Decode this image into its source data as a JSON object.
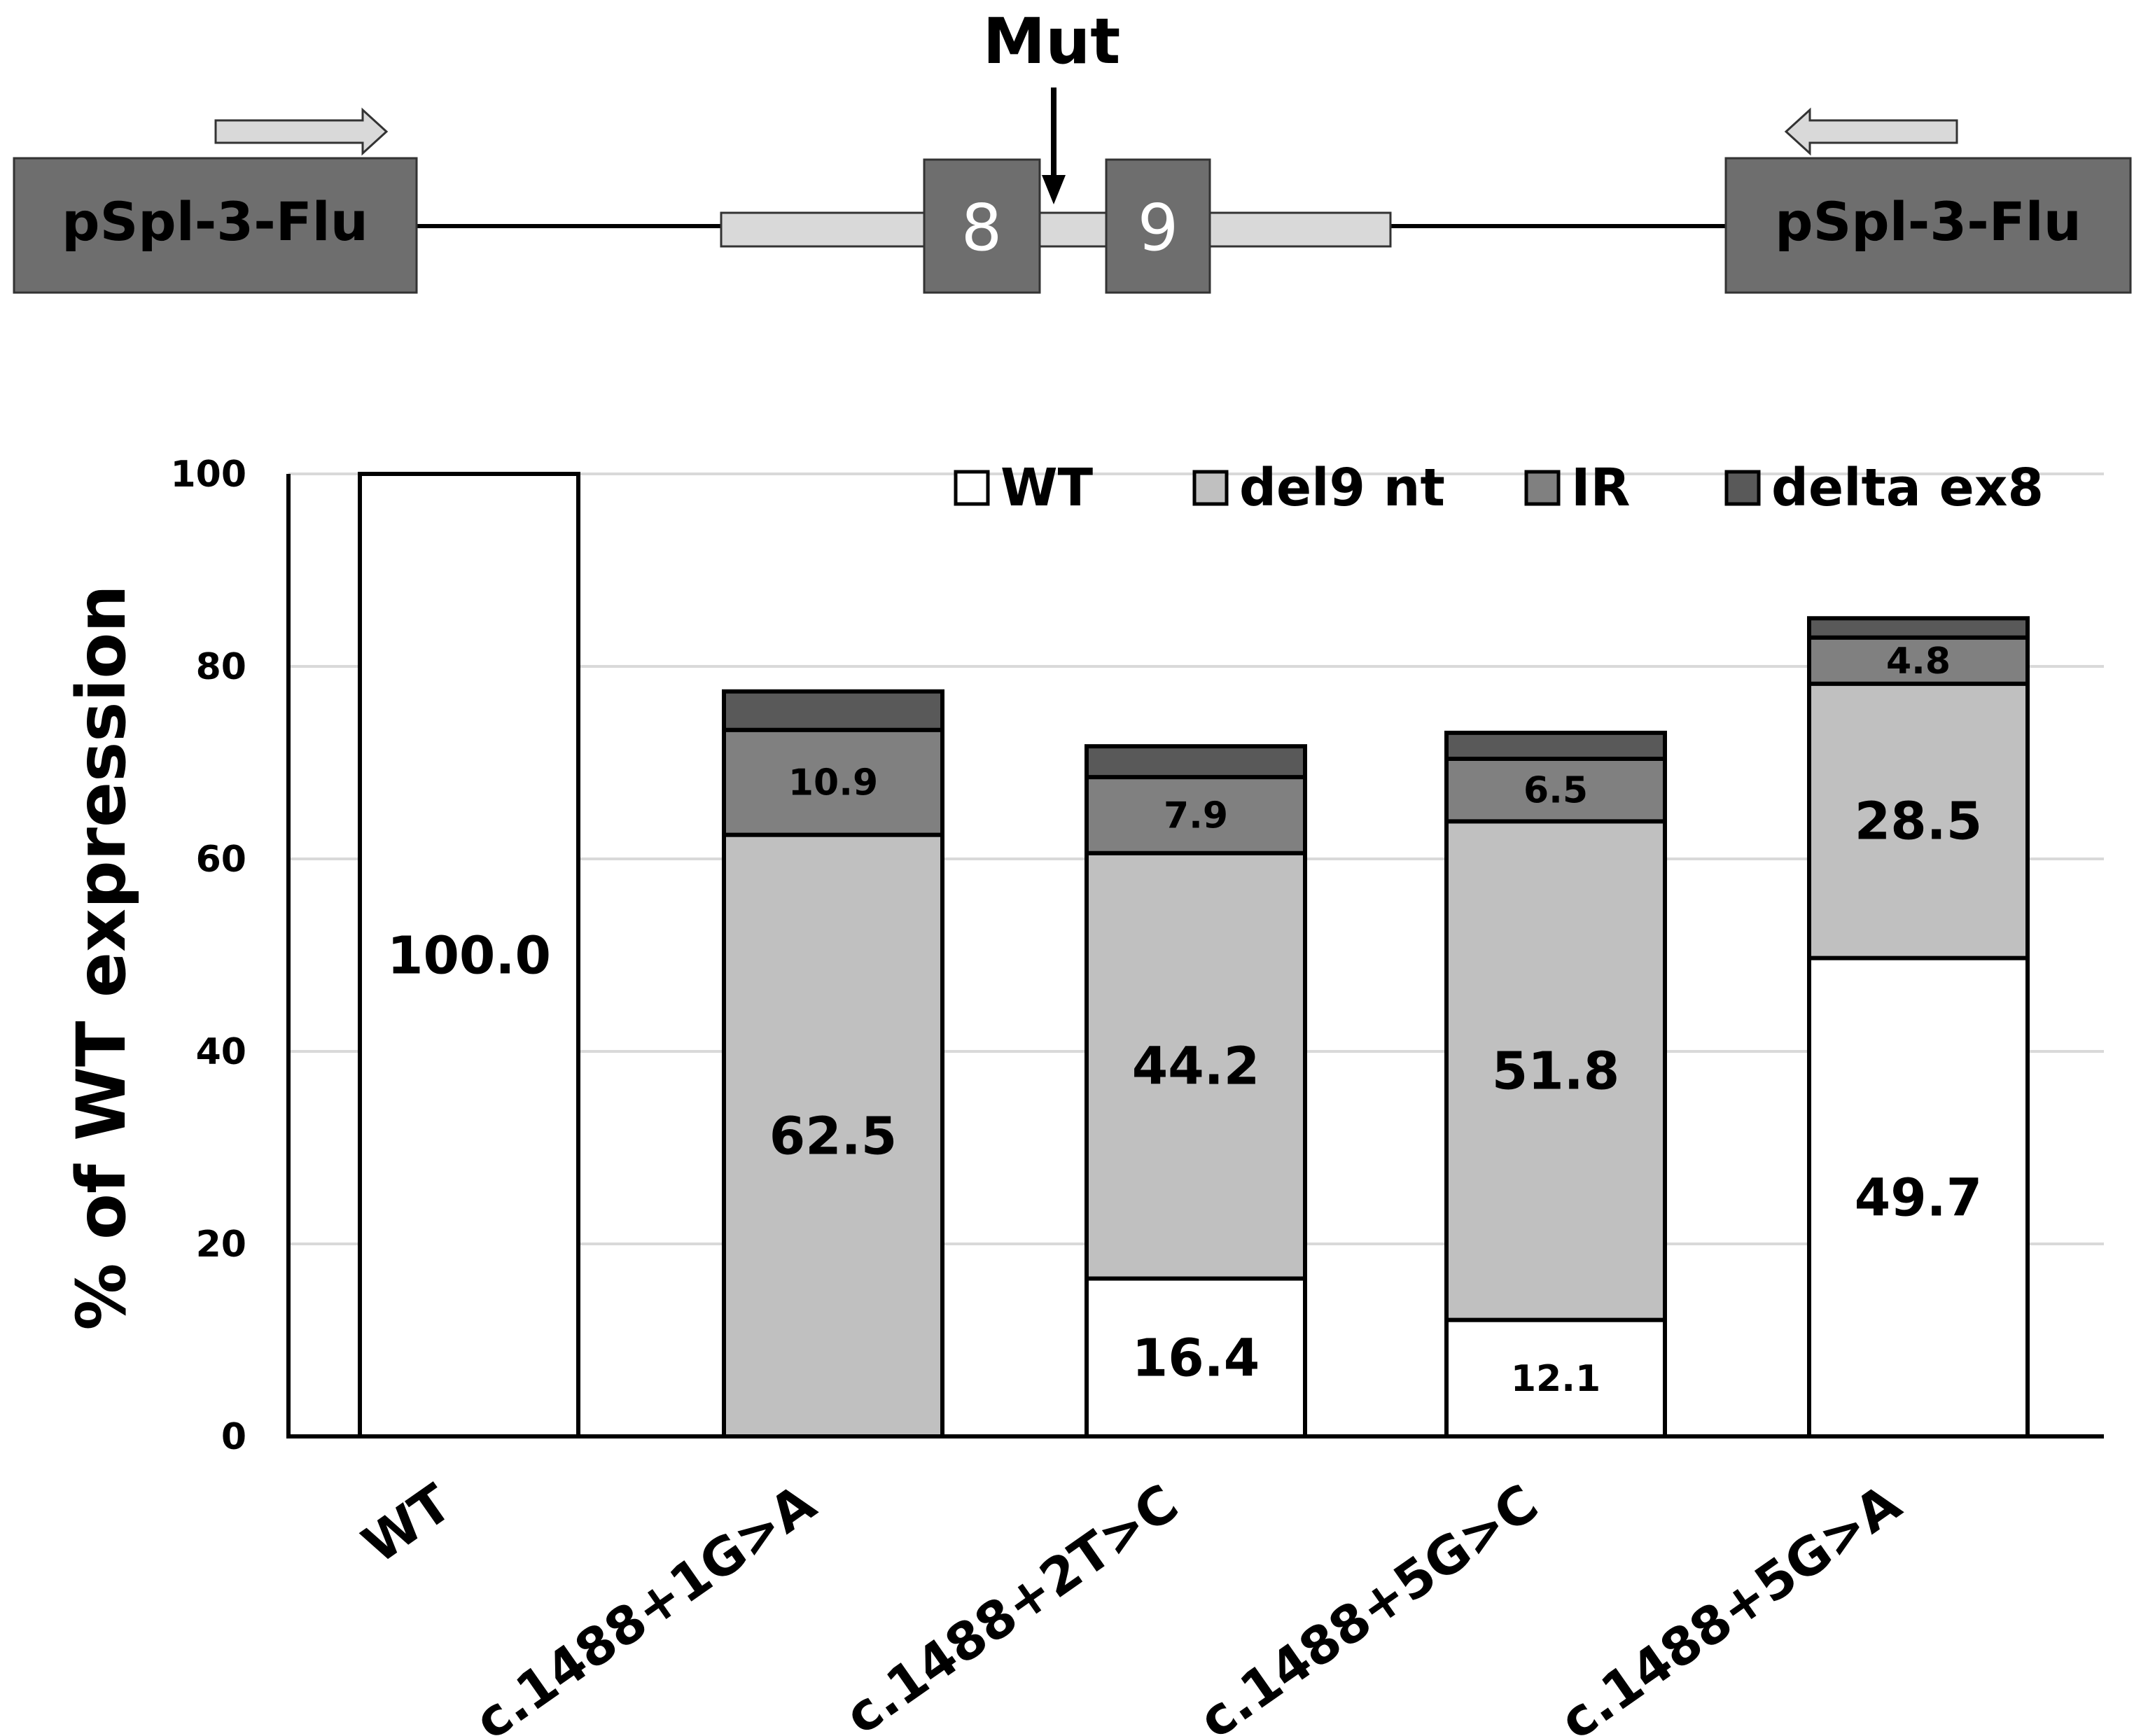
{
  "diagram": {
    "mutation_label": "Mut",
    "vector_left_label": "pSpl-3-Flu",
    "vector_right_label": "pSpl-3-Flu",
    "exons": [
      "8",
      "9"
    ],
    "colors": {
      "vector_box": "#6e6e6e",
      "exon_box": "#6e6e6e",
      "intron": "#d9d9d9",
      "arrow_fill": "#d9d9d9"
    }
  },
  "chart_data": {
    "type": "bar",
    "stacked": true,
    "title": "",
    "xlabel": "",
    "ylabel": "% of WT expression",
    "ylim": [
      0,
      100
    ],
    "yticks": [
      0,
      20,
      40,
      60,
      80,
      100
    ],
    "grid": true,
    "legend_position": "top-right",
    "categories": [
      "WT",
      "c.1488+1G>A",
      "c.1488+2T>C",
      "c.1488+5G>C",
      "c.1488+5G>A"
    ],
    "series": [
      {
        "name": "WT",
        "color": "#ffffff",
        "values": [
          100.0,
          0,
          16.4,
          12.1,
          49.7
        ]
      },
      {
        "name": "del9 nt",
        "color": "#c0c0c0",
        "values": [
          0,
          62.5,
          44.2,
          51.8,
          28.5
        ]
      },
      {
        "name": "IR",
        "color": "#808080",
        "values": [
          0,
          10.9,
          7.9,
          6.5,
          4.8
        ]
      },
      {
        "name": "delta ex8",
        "color": "#595959",
        "values": [
          0,
          4.0,
          3.2,
          2.7,
          2.0
        ]
      }
    ],
    "data_labels": [
      [
        "100.0",
        "",
        "",
        ""
      ],
      [
        "",
        "62.5",
        "10.9",
        ""
      ],
      [
        "16.4",
        "44.2",
        "7.9",
        ""
      ],
      [
        "12.1",
        "51.8",
        "6.5",
        ""
      ],
      [
        "49.7",
        "28.5",
        "4.8",
        ""
      ]
    ]
  }
}
